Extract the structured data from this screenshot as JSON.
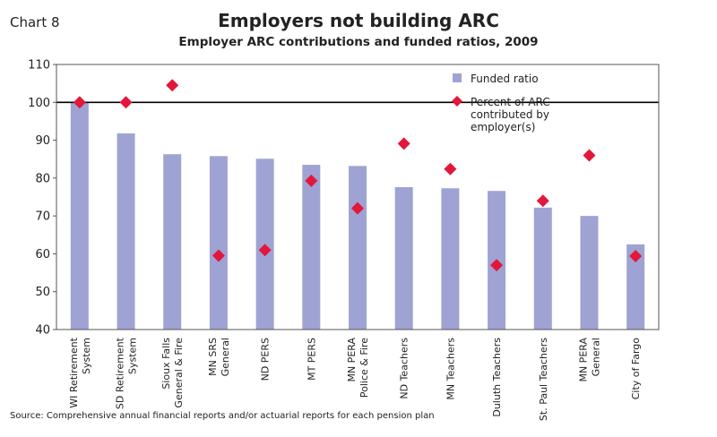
{
  "chart_label": "Chart 8",
  "source": "Source: Comprehensive annual financial reports and/or actuarial reports for each pension plan",
  "chart_data": {
    "type": "bar",
    "title": "Employers not building ARC",
    "subtitle": "Employer ARC contributions and funded ratios, 2009",
    "categories": [
      [
        "WI Retirement",
        "System"
      ],
      [
        "SD Retirement",
        "System"
      ],
      [
        "Sioux Falls",
        "General & Fire"
      ],
      [
        "MN SRS",
        "General"
      ],
      [
        "ND PERS"
      ],
      [
        "MT PERS"
      ],
      [
        "MN PERA",
        "Police & Fire"
      ],
      [
        "ND Teachers"
      ],
      [
        "MN Teachers"
      ],
      [
        "Duluth Teachers"
      ],
      [
        "St. Paul Teachers"
      ],
      [
        "MN PERA",
        "General"
      ],
      [
        "City of Fargo"
      ]
    ],
    "series": [
      {
        "name": "Funded ratio",
        "type": "bar",
        "color": "#9fa3d3",
        "values": [
          100,
          91.8,
          86.3,
          85.8,
          85.1,
          83.5,
          83.2,
          77.6,
          77.3,
          76.6,
          72.2,
          70,
          62.5
        ]
      },
      {
        "name": "Percent of ARC contributed by employer(s)",
        "type": "marker",
        "marker": "diamond",
        "color": "#e3173b",
        "values": [
          100,
          100,
          104.5,
          59.5,
          61,
          79.3,
          72,
          89.1,
          82.4,
          57,
          74,
          86,
          59.4
        ]
      }
    ],
    "legend": {
      "position": "top-right",
      "labels": [
        [
          "Funded ratio"
        ],
        [
          "Percent of ARC",
          "contributed by",
          "employer(s)"
        ]
      ]
    },
    "ylim": [
      40,
      110
    ],
    "yticks": [
      40,
      50,
      60,
      70,
      80,
      90,
      100,
      110
    ],
    "reference_line": 100,
    "grid": false
  }
}
